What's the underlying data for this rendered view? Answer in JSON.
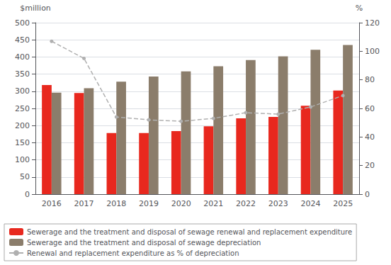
{
  "chart_data": {
    "type": "bar",
    "categories": [
      "2016",
      "2017",
      "2018",
      "2019",
      "2020",
      "2021",
      "2022",
      "2023",
      "2024",
      "2025"
    ],
    "series": [
      {
        "name": "Sewerage and the treatment and disposal of sewage renewal and replacement expenditure",
        "color": "#e8281e",
        "type": "bar",
        "values": [
          318,
          295,
          178,
          178,
          184,
          198,
          221,
          225,
          258,
          302
        ]
      },
      {
        "name": "Sewerage and the treatment and disposal of sewage depreciation",
        "color": "#8b7d6b",
        "type": "bar",
        "values": [
          296,
          309,
          328,
          343,
          358,
          373,
          391,
          402,
          421,
          435
        ]
      },
      {
        "name": "Renewal and replacement expenditure as % of depreciation",
        "color": "#b0b0b0",
        "type": "line",
        "axis": "y2",
        "line_style": "dashed",
        "marker": "circle",
        "values": [
          107,
          95,
          54,
          52,
          51,
          53,
          57,
          56,
          61,
          69
        ]
      }
    ],
    "ylabel": "$million",
    "y2label": "%",
    "ylim": [
      0,
      500
    ],
    "yticks": [
      0,
      50,
      100,
      150,
      200,
      250,
      300,
      350,
      400,
      450,
      500
    ],
    "y2lim": [
      0,
      120
    ],
    "y2ticks": [
      0,
      20,
      40,
      60,
      80,
      100,
      120
    ],
    "grid": true,
    "legend": "bottom left"
  }
}
